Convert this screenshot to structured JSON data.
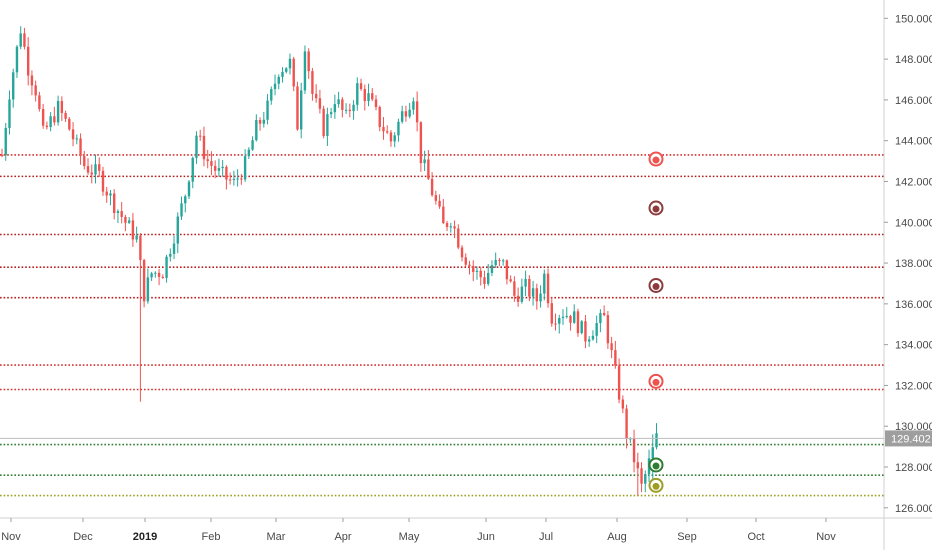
{
  "chart_data": {
    "type": "candlestick",
    "title": "",
    "xlabel": "",
    "ylabel": "",
    "ylim": [
      125.5,
      150.8
    ],
    "y_ticks": [
      126,
      128,
      130,
      132,
      134,
      136,
      138,
      140,
      142,
      144,
      146,
      148,
      150
    ],
    "y_tick_labels": [
      "126.000",
      "128.000",
      "130.000",
      "132.000",
      "134.000",
      "136.000",
      "138.000",
      "140.000",
      "142.000",
      "144.000",
      "146.000",
      "148.000",
      "150.000"
    ],
    "x_tick_labels": [
      "Nov",
      "Dec",
      "2019",
      "Feb",
      "Mar",
      "Apr",
      "May",
      "Jun",
      "Jul",
      "Aug",
      "Sep",
      "Oct",
      "Nov"
    ],
    "x_tick_year_index": 2,
    "last_price": "129.402",
    "last_price_value": 129.402,
    "grid": false,
    "up_color": "#26a69a",
    "down_color": "#ef5350",
    "anchors": [
      [
        0,
        143.3
      ],
      [
        2,
        146.4
      ],
      [
        5,
        149.5
      ],
      [
        7,
        147.6
      ],
      [
        9,
        146.5
      ],
      [
        11,
        144.3
      ],
      [
        15,
        145.6
      ],
      [
        18,
        144.6
      ],
      [
        22,
        142.8
      ],
      [
        26,
        142.3
      ],
      [
        29,
        141.2
      ],
      [
        33,
        140.0
      ],
      [
        36,
        139.2
      ],
      [
        38,
        136.5
      ],
      [
        40,
        137.5
      ],
      [
        43,
        137.6
      ],
      [
        46,
        139.4
      ],
      [
        49,
        141.4
      ],
      [
        52,
        144.3
      ],
      [
        55,
        143.0
      ],
      [
        58,
        142.4
      ],
      [
        62,
        141.9
      ],
      [
        65,
        142.8
      ],
      [
        68,
        144.6
      ],
      [
        71,
        145.6
      ],
      [
        74,
        147.5
      ],
      [
        77,
        147.8
      ],
      [
        79,
        144.8
      ],
      [
        81,
        148.8
      ],
      [
        83,
        146.3
      ],
      [
        86,
        144.6
      ],
      [
        89,
        146.1
      ],
      [
        92,
        145.1
      ],
      [
        95,
        146.6
      ],
      [
        98,
        146.1
      ],
      [
        101,
        144.9
      ],
      [
        104,
        144.0
      ],
      [
        107,
        145.3
      ],
      [
        110,
        146.3
      ],
      [
        112,
        143.2
      ],
      [
        115,
        141.5
      ],
      [
        118,
        139.8
      ],
      [
        120,
        140.2
      ],
      [
        123,
        138.6
      ],
      [
        126,
        137.6
      ],
      [
        129,
        137.2
      ],
      [
        131,
        137.9
      ],
      [
        134,
        137.9
      ],
      [
        137,
        136.4
      ],
      [
        140,
        136.8
      ],
      [
        143,
        136.2
      ],
      [
        145,
        137.4
      ],
      [
        147,
        135.4
      ],
      [
        150,
        135.6
      ],
      [
        153,
        135.3
      ],
      [
        156,
        134.4
      ],
      [
        159,
        135.0
      ],
      [
        161,
        135.3
      ],
      [
        163,
        133.5
      ],
      [
        165,
        131.6
      ],
      [
        167,
        129.6
      ],
      [
        169,
        128.4
      ],
      [
        171,
        127.0
      ],
      [
        173,
        128.2
      ],
      [
        175,
        129.4
      ]
    ],
    "wicks": [
      {
        "i": 37,
        "low": 131.2,
        "high": 138.6
      },
      {
        "i": 170,
        "low": 126.6,
        "high": 128.7
      },
      {
        "i": 174,
        "low": 127.4,
        "high": 129.6
      }
    ],
    "levels": [
      {
        "value": 143.3,
        "color": "#d32f2f",
        "style": "dotted"
      },
      {
        "value": 142.25,
        "color": "#b71c1c",
        "style": "dotted"
      },
      {
        "value": 139.4,
        "color": "#b71c1c",
        "style": "dotted"
      },
      {
        "value": 137.8,
        "color": "#b71c1c",
        "style": "dotted"
      },
      {
        "value": 136.3,
        "color": "#b71c1c",
        "style": "dotted"
      },
      {
        "value": 133.0,
        "color": "#d32f2f",
        "style": "dotted"
      },
      {
        "value": 131.8,
        "color": "#d32f2f",
        "style": "dotted"
      },
      {
        "value": 129.1,
        "color": "#2e7d32",
        "style": "dotted"
      },
      {
        "value": 127.6,
        "color": "#2e7d32",
        "style": "dotted"
      },
      {
        "value": 126.6,
        "color": "#9e9d24",
        "style": "dotted"
      }
    ],
    "markers": [
      {
        "value": 143.1,
        "color": "#ef5350"
      },
      {
        "value": 140.7,
        "color": "#8d3b3b"
      },
      {
        "value": 136.9,
        "color": "#8d3b3b"
      },
      {
        "value": 132.2,
        "color": "#ef5350"
      },
      {
        "value": 128.1,
        "color": "#2e7d32"
      },
      {
        "value": 127.1,
        "color": "#9e9d24"
      }
    ]
  }
}
